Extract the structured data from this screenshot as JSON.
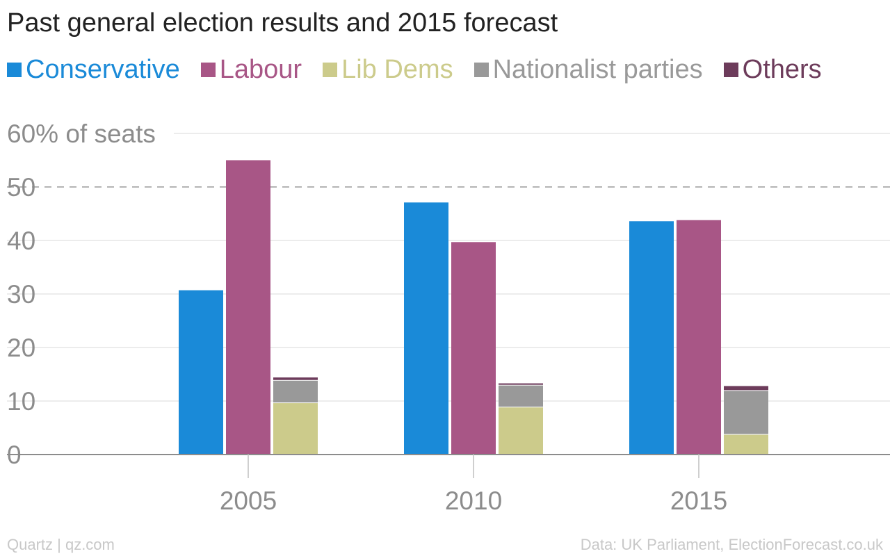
{
  "chart_data": {
    "type": "bar",
    "title": "Past general election results and 2015 forecast",
    "ylabel_top": "60% of seats",
    "ylim": [
      0,
      60
    ],
    "yticks": [
      0,
      10,
      20,
      30,
      40,
      50
    ],
    "reference_line": 50,
    "categories": [
      "2005",
      "2010",
      "2015"
    ],
    "groups": [
      {
        "series": "Conservative",
        "stack": "Conservative"
      },
      {
        "series": "Labour",
        "stack": "Labour"
      },
      {
        "series": [
          "Lib Dems",
          "Nationalist parties",
          "Others"
        ],
        "stack": "Smaller parties"
      }
    ],
    "series": [
      {
        "name": "Conservative",
        "color": "#1a8ad8",
        "values": [
          30.7,
          47.1,
          43.6
        ]
      },
      {
        "name": "Labour",
        "color": "#a85686",
        "values": [
          55.0,
          39.7,
          43.8
        ]
      },
      {
        "name": "Lib Dems",
        "color": "#cccb8b",
        "values": [
          9.6,
          8.8,
          3.7
        ]
      },
      {
        "name": "Nationalist parties",
        "color": "#999999",
        "values": [
          4.2,
          4.1,
          8.2
        ]
      },
      {
        "name": "Others",
        "color": "#6d3c5b",
        "values": [
          0.6,
          0.4,
          0.9
        ]
      }
    ],
    "grid": true,
    "legend_position": "top"
  },
  "footer": {
    "left": "Quartz | qz.com",
    "right": "Data: UK Parliament, ElectionForecast.co.uk"
  }
}
